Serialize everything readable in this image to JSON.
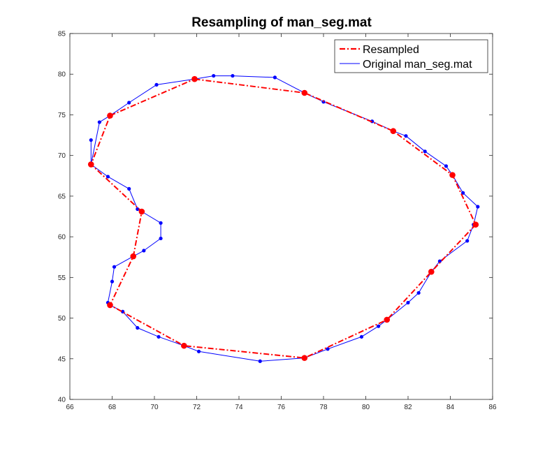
{
  "chart_data": {
    "type": "line",
    "title": "Resampling of man_seg.mat",
    "xlabel": "",
    "ylabel": "",
    "xlim": [
      66,
      86
    ],
    "ylim": [
      40,
      85
    ],
    "xticks": [
      66,
      68,
      70,
      72,
      74,
      76,
      78,
      80,
      82,
      84,
      86
    ],
    "yticks": [
      40,
      45,
      50,
      55,
      60,
      65,
      70,
      75,
      80,
      85
    ],
    "grid": false,
    "legend_position": "top-right",
    "series": [
      {
        "name": "Resampled",
        "color": "#ff0000",
        "line_style": "dash-dot",
        "marker": "circle",
        "x": [
          71.9,
          77.1,
          81.3,
          84.1,
          85.2,
          83.1,
          81.0,
          77.1,
          71.4,
          67.9,
          69.0,
          69.4,
          67.0,
          67.9,
          71.9
        ],
        "y": [
          79.4,
          77.7,
          73.0,
          67.6,
          61.5,
          55.7,
          49.8,
          45.1,
          46.6,
          51.6,
          57.6,
          63.1,
          68.9,
          74.9,
          79.4
        ]
      },
      {
        "name": "Original man_seg.mat",
        "color": "#0000ff",
        "line_style": "solid",
        "marker": "dot",
        "x": [
          71.9,
          72.8,
          73.7,
          75.7,
          77.1,
          78.0,
          80.3,
          81.3,
          81.9,
          82.8,
          83.8,
          84.1,
          84.6,
          85.3,
          85.1,
          84.8,
          83.5,
          83.1,
          82.5,
          82.0,
          81.0,
          80.6,
          79.8,
          78.2,
          77.1,
          75.0,
          72.1,
          71.4,
          70.2,
          69.2,
          68.5,
          67.9,
          67.8,
          68.0,
          68.1,
          69.0,
          69.5,
          70.3,
          70.3,
          69.4,
          69.2,
          68.8,
          67.8,
          67.0,
          67.0,
          67.0,
          67.4,
          67.9,
          68.8,
          70.1,
          71.9
        ],
        "y": [
          79.4,
          79.8,
          79.8,
          79.6,
          77.7,
          76.6,
          74.2,
          73.0,
          72.4,
          70.5,
          68.7,
          67.6,
          65.4,
          63.7,
          61.5,
          59.5,
          57.0,
          55.7,
          53.1,
          51.9,
          49.8,
          49.0,
          47.7,
          46.2,
          45.1,
          44.7,
          45.9,
          46.6,
          47.7,
          48.8,
          50.8,
          51.6,
          51.9,
          54.5,
          56.3,
          57.6,
          58.3,
          59.8,
          61.7,
          63.1,
          63.4,
          65.9,
          67.4,
          68.9,
          71.9,
          68.9,
          74.1,
          74.9,
          76.5,
          78.7,
          79.4
        ]
      }
    ]
  }
}
